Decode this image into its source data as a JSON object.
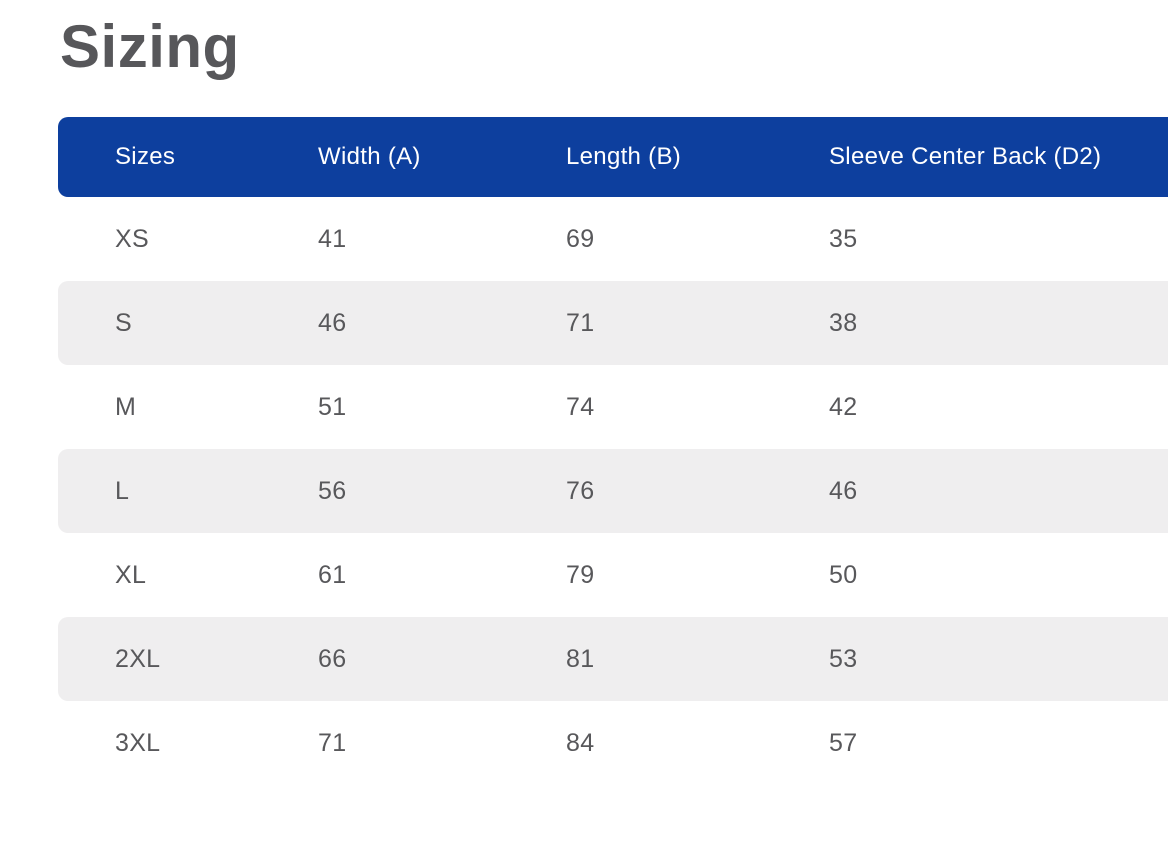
{
  "page": {
    "title": "Sizing"
  },
  "sizing_table": {
    "columns": [
      "Sizes",
      "Width (A)",
      "Length (B)",
      "Sleeve Center Back (D2)"
    ],
    "rows": [
      [
        "XS",
        "41",
        "69",
        "35"
      ],
      [
        "S",
        "46",
        "71",
        "38"
      ],
      [
        "M",
        "51",
        "74",
        "42"
      ],
      [
        "L",
        "56",
        "76",
        "46"
      ],
      [
        "XL",
        "61",
        "79",
        "50"
      ],
      [
        "2XL",
        "66",
        "81",
        "53"
      ],
      [
        "3XL",
        "71",
        "84",
        "57"
      ]
    ]
  },
  "colors": {
    "header_bg": "#0d3f9e",
    "header_text": "#ffffff",
    "row_alt_bg": "#efeeef",
    "text": "#58585b",
    "title": "#57575a"
  }
}
